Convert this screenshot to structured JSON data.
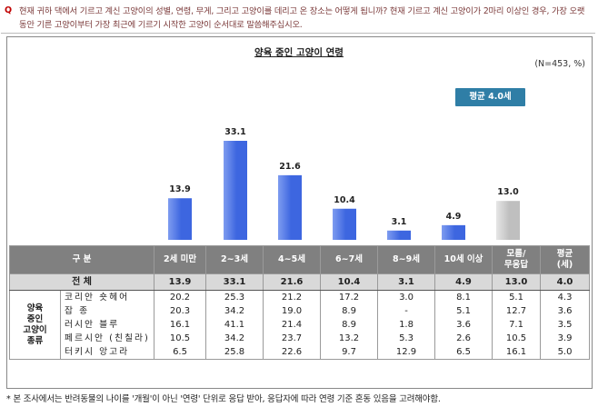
{
  "question": {
    "mark": "Q",
    "text": "현재 귀하 댁에서 기르고 계신 고양이의 성별, 연령, 무게, 그리고 고양이를 데리고 온 장소는 어떻게 됩니까? 현재 기르고 계신 고양이가 2마리 이상인 경우, 가장 오랫동안 기른 고양이부터 가장 최근에 기르기 시작한 고양이 순서대로 말씀해주십시오."
  },
  "chart_data": {
    "type": "bar",
    "title": "양육 중인 고양이 연령",
    "note": "(N=453, %)",
    "average_badge": "평균 4.0세",
    "categories": [
      "2세 미만",
      "2~3세",
      "4~5세",
      "6~7세",
      "8~9세",
      "10세 이상",
      "모름/무응답"
    ],
    "values": [
      13.9,
      33.1,
      21.6,
      10.4,
      3.1,
      4.9,
      13.0
    ],
    "value_labels": [
      "13.9",
      "33.1",
      "21.6",
      "10.4",
      "3.1",
      "4.9",
      "13.0"
    ],
    "ylim": [
      0,
      35
    ],
    "colors": {
      "main": "#3d66e0",
      "light": "#7e9cf0",
      "unknown": "#bfbfbf",
      "unknown_light": "#e6e6e6"
    }
  },
  "table": {
    "header": [
      "구 분",
      "2세 미만",
      "2~3세",
      "4~5세",
      "6~7세",
      "8~9세",
      "10세 이상",
      "모름/\n무응답",
      "평균\n(세)"
    ],
    "total": {
      "label": "전 체",
      "values": [
        "13.9",
        "33.1",
        "21.6",
        "10.4",
        "3.1",
        "4.9",
        "13.0",
        "4.0"
      ]
    },
    "group_label": "양육\n중인\n고양이\n종류",
    "rows": [
      {
        "label": "코리안 숏헤어",
        "values": [
          "20.2",
          "25.3",
          "21.2",
          "17.2",
          "3.0",
          "8.1",
          "5.1",
          "4.3"
        ]
      },
      {
        "label": "잡 종",
        "values": [
          "20.3",
          "34.2",
          "19.0",
          "8.9",
          "-",
          "5.1",
          "12.7",
          "3.6"
        ]
      },
      {
        "label": "러시안 블루",
        "values": [
          "16.1",
          "41.1",
          "21.4",
          "8.9",
          "1.8",
          "3.6",
          "7.1",
          "3.5"
        ]
      },
      {
        "label": "페르시안 (친칠라)",
        "values": [
          "10.5",
          "34.2",
          "23.7",
          "13.2",
          "5.3",
          "2.6",
          "10.5",
          "3.9"
        ]
      },
      {
        "label": "터키시 앙고라",
        "values": [
          "6.5",
          "25.8",
          "22.6",
          "9.7",
          "12.9",
          "6.5",
          "16.1",
          "5.0"
        ]
      }
    ]
  },
  "footnote": "* 본 조사에서는 반려동물의 나이를 '개월'이 아닌 '연령' 단위로 응답 받아, 응답자에 따라 연령 기준 혼동 있음을 고려해야함."
}
